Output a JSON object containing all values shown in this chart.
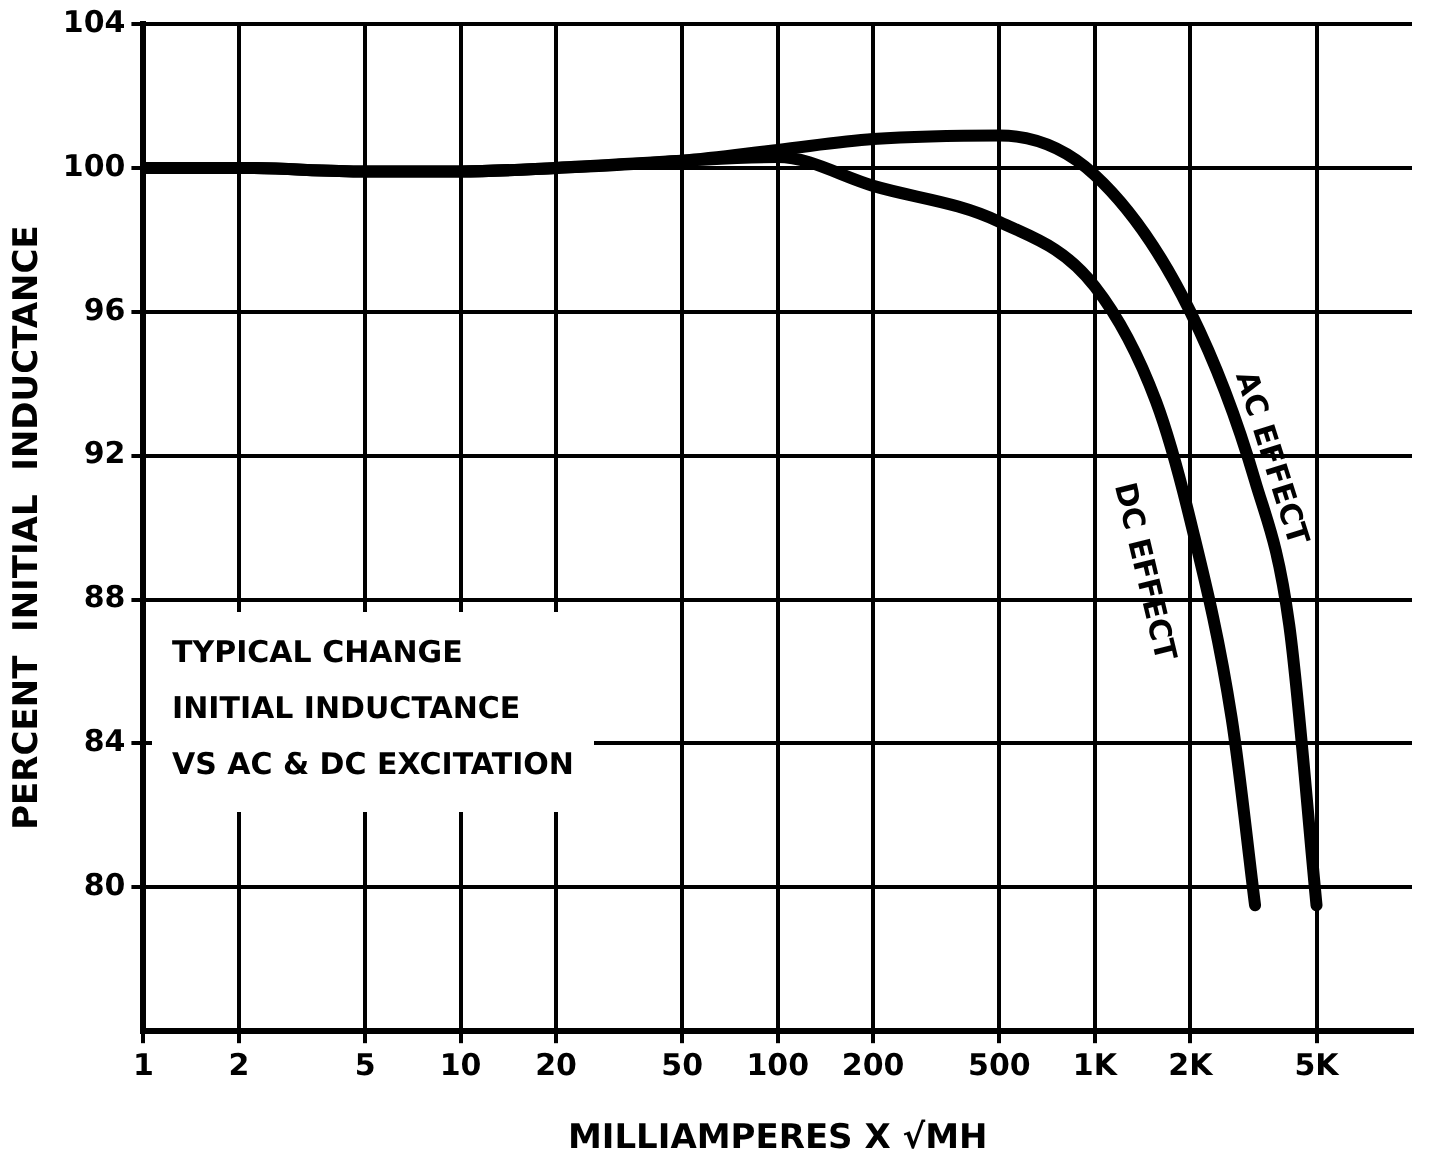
{
  "chart_data": {
    "type": "line",
    "xlabel": "MILLIAMPERES X √MH",
    "ylabel": "PERCENT  INITIAL  INDUCTANCE",
    "log": "x",
    "xlim": [
      1,
      10000
    ],
    "xticks": [
      1,
      2,
      5,
      10,
      20,
      50,
      100,
      200,
      500,
      {
        "value": 1000,
        "label": "1K"
      },
      {
        "value": 2000,
        "label": "2K"
      },
      {
        "value": 5000,
        "label": "5K"
      }
    ],
    "ylim": [
      76,
      104
    ],
    "yticks": [
      80,
      84,
      88,
      92,
      96,
      100,
      104
    ],
    "grid": true,
    "legend": false,
    "marker": "none",
    "line_style": "solid",
    "annotations": [
      "TYPICAL CHANGE",
      "INITIAL INDUCTANCE",
      "VS AC & DC EXCITATION"
    ],
    "series": [
      {
        "name": "AC EFFECT",
        "color": "#000000",
        "x": [
          1,
          2,
          5,
          10,
          20,
          50,
          100,
          200,
          500,
          1000,
          2000,
          3200,
          4100,
          5000
        ],
        "values": [
          100,
          100,
          99.9,
          99.9,
          100,
          100.2,
          100.5,
          100.8,
          100.9,
          99.8,
          96,
          91.3,
          87.3,
          79.5
        ]
      },
      {
        "name": "DC EFFECT",
        "color": "#000000",
        "x": [
          1,
          2,
          5,
          10,
          20,
          50,
          100,
          200,
          500,
          1000,
          1560,
          2000,
          2700,
          3200
        ],
        "values": [
          100,
          100,
          99.9,
          99.9,
          100,
          100.2,
          100.3,
          99.5,
          98.5,
          96.7,
          93.5,
          90.2,
          84.7,
          79.5
        ]
      }
    ]
  }
}
